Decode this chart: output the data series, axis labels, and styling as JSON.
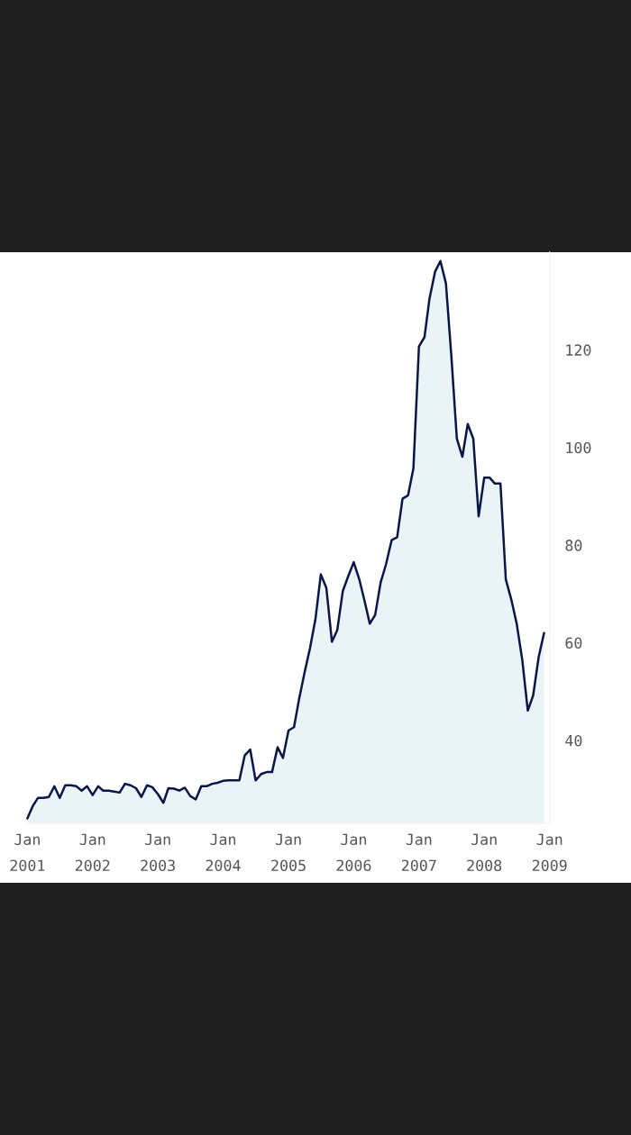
{
  "chart_data": {
    "type": "area",
    "x": [
      "2001-01",
      "2001-02",
      "2001-03",
      "2001-04",
      "2001-05",
      "2001-06",
      "2001-07",
      "2001-08",
      "2001-09",
      "2001-10",
      "2001-11",
      "2001-12",
      "2002-01",
      "2002-02",
      "2002-03",
      "2002-04",
      "2002-05",
      "2002-06",
      "2002-07",
      "2002-08",
      "2002-09",
      "2002-10",
      "2002-11",
      "2002-12",
      "2003-01",
      "2003-02",
      "2003-03",
      "2003-04",
      "2003-05",
      "2003-06",
      "2003-07",
      "2003-08",
      "2003-09",
      "2003-10",
      "2003-11",
      "2003-12",
      "2004-01",
      "2004-02",
      "2004-03",
      "2004-04",
      "2004-05",
      "2004-06",
      "2004-07",
      "2004-08",
      "2004-09",
      "2004-10",
      "2004-11",
      "2004-12",
      "2005-01",
      "2005-02",
      "2005-03",
      "2005-04",
      "2005-05",
      "2005-06",
      "2005-07",
      "2005-08",
      "2005-09",
      "2005-10",
      "2005-11",
      "2005-12",
      "2006-01",
      "2006-02",
      "2006-03",
      "2006-04",
      "2006-05",
      "2006-06",
      "2006-07",
      "2006-08",
      "2006-09",
      "2006-10",
      "2006-11",
      "2006-12",
      "2007-01",
      "2007-02",
      "2007-03",
      "2007-04",
      "2007-05",
      "2007-06",
      "2007-07",
      "2007-08",
      "2007-09",
      "2007-10",
      "2007-11",
      "2007-12",
      "2008-01",
      "2008-02",
      "2008-03",
      "2008-04",
      "2008-05",
      "2008-06",
      "2008-07",
      "2008-08",
      "2008-09",
      "2008-10",
      "2008-11",
      "2008-12"
    ],
    "series": [
      {
        "color": "#0a1648",
        "values": [
          24,
          26.6,
          28.2,
          28.2,
          28.4,
          30.6,
          28.2,
          30.8,
          30.8,
          30.6,
          29.7,
          30.6,
          28.8,
          30.6,
          29.7,
          29.7,
          29.5,
          29.3,
          31.1,
          30.8,
          30.2,
          28.4,
          30.8,
          30.4,
          29,
          27.2,
          30.2,
          30.1,
          29.7,
          30.3,
          28.6,
          27.9,
          30.6,
          30.6,
          31.1,
          31.3,
          31.7,
          31.8,
          31.8,
          31.8,
          36.9,
          38.1,
          31.8,
          33.1,
          33.5,
          33.5,
          38.6,
          36.4,
          42,
          42.7,
          48.4,
          53.9,
          58.8,
          64.9,
          74,
          71.2,
          60.2,
          62.6,
          70.6,
          73.6,
          76.5,
          73,
          68.8,
          63.9,
          65.7,
          72.4,
          76.1,
          81,
          81.6,
          89.5,
          90.2,
          95.7,
          120.7,
          122.6,
          130.5,
          136,
          138.2,
          133.6,
          118.9,
          101.8,
          98.1,
          104.8,
          101.8,
          85.9,
          93.8,
          93.8,
          92.6,
          92.6,
          73,
          68.8,
          63.9,
          56.5,
          46.1,
          49.2,
          57.1,
          62
        ]
      }
    ],
    "xlim": [
      "2000-12-20",
      "2009-01-01"
    ],
    "xticks": [
      {
        "value": "2001-01",
        "label": "Jan\n2001"
      },
      {
        "value": "2002-01",
        "label": "Jan\n2002"
      },
      {
        "value": "2003-01",
        "label": "Jan\n2003"
      },
      {
        "value": "2004-01",
        "label": "Jan\n2004"
      },
      {
        "value": "2005-01",
        "label": "Jan\n2005"
      },
      {
        "value": "2006-01",
        "label": "Jan\n2006"
      },
      {
        "value": "2007-01",
        "label": "Jan\n2007"
      },
      {
        "value": "2008-01",
        "label": "Jan\n2008"
      },
      {
        "value": "2009-01",
        "label": "Jan\n2009"
      }
    ],
    "ylim": [
      23,
      140
    ],
    "yticks": [
      40,
      60,
      80,
      100,
      120
    ],
    "grid": false,
    "legend": false
  }
}
